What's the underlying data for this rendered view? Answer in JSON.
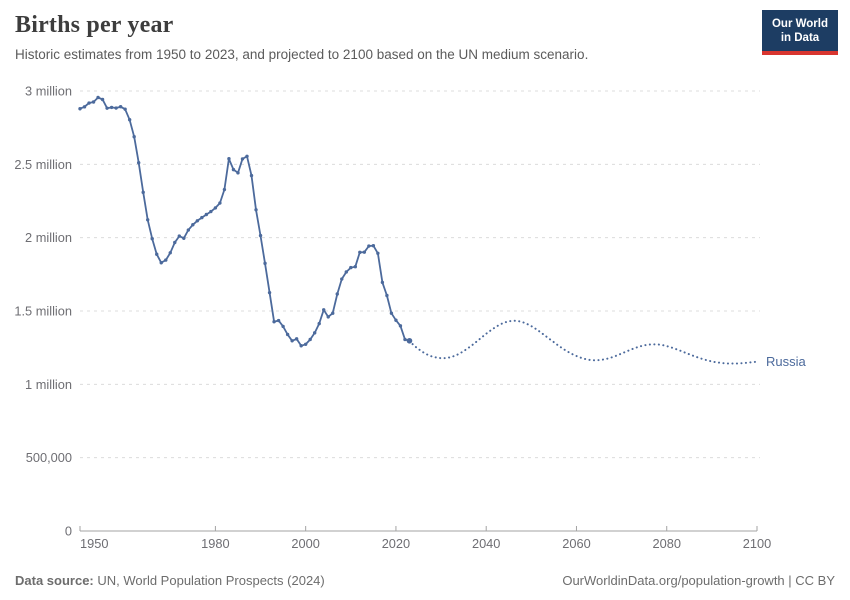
{
  "header": {
    "title": "Births per year",
    "subtitle": "Historic estimates from 1950 to 2023, and projected to 2100 based on the UN medium scenario."
  },
  "logo": {
    "line1": "Our World",
    "line2": "in Data"
  },
  "footer": {
    "datasource_label": "Data source:",
    "datasource_value": " UN, World Population Prospects (2024)",
    "right": "OurWorldinData.org/population-growth | CC BY"
  },
  "colors": {
    "line_blue": "#4c6a9c",
    "grid_gray": "#dcdcdc",
    "axis_gray": "#a3a3a3",
    "tick_label_gray": "#6e6e73",
    "logo_navy": "#1d3d63",
    "logo_red": "#d8352f"
  },
  "chart_data": {
    "type": "line",
    "title": "Births per year",
    "entity_label": "Russia",
    "values_unit": "millions of births per year",
    "xlim": [
      1950,
      2100
    ],
    "ylim_millions": [
      0,
      3
    ],
    "grid": "dashed horizontal",
    "x_ticks": [
      1950,
      1980,
      2000,
      2020,
      2040,
      2060,
      2080,
      2100
    ],
    "y_ticks": [
      {
        "value": 3,
        "label": "3 million"
      },
      {
        "value": 2.5,
        "label": "2.5 million"
      },
      {
        "value": 2,
        "label": "2 million"
      },
      {
        "value": 1.5,
        "label": "1.5 million"
      },
      {
        "value": 1,
        "label": "1 million"
      },
      {
        "value": 0.5,
        "label": "500,000"
      },
      {
        "value": 0,
        "label": "0"
      }
    ],
    "series": [
      {
        "name": "historic",
        "style": "solid_with_markers",
        "points": [
          [
            1950,
            2.879
          ],
          [
            1951,
            2.892
          ],
          [
            1952,
            2.918
          ],
          [
            1953,
            2.925
          ],
          [
            1954,
            2.956
          ],
          [
            1955,
            2.942
          ],
          [
            1956,
            2.883
          ],
          [
            1957,
            2.888
          ],
          [
            1958,
            2.884
          ],
          [
            1959,
            2.893
          ],
          [
            1960,
            2.876
          ],
          [
            1961,
            2.804
          ],
          [
            1962,
            2.688
          ],
          [
            1963,
            2.511
          ],
          [
            1964,
            2.309
          ],
          [
            1965,
            2.122
          ],
          [
            1966,
            1.993
          ],
          [
            1967,
            1.887
          ],
          [
            1968,
            1.829
          ],
          [
            1969,
            1.847
          ],
          [
            1970,
            1.897
          ],
          [
            1971,
            1.967
          ],
          [
            1972,
            2.011
          ],
          [
            1973,
            1.996
          ],
          [
            1974,
            2.052
          ],
          [
            1975,
            2.088
          ],
          [
            1976,
            2.115
          ],
          [
            1977,
            2.137
          ],
          [
            1978,
            2.158
          ],
          [
            1979,
            2.178
          ],
          [
            1980,
            2.203
          ],
          [
            1981,
            2.236
          ],
          [
            1982,
            2.328
          ],
          [
            1983,
            2.538
          ],
          [
            1984,
            2.464
          ],
          [
            1985,
            2.442
          ],
          [
            1986,
            2.537
          ],
          [
            1987,
            2.555
          ],
          [
            1988,
            2.423
          ],
          [
            1989,
            2.19
          ],
          [
            1990,
            2.014
          ],
          [
            1991,
            1.825
          ],
          [
            1992,
            1.625
          ],
          [
            1993,
            1.427
          ],
          [
            1994,
            1.435
          ],
          [
            1995,
            1.395
          ],
          [
            1996,
            1.34
          ],
          [
            1997,
            1.297
          ],
          [
            1998,
            1.31
          ],
          [
            1999,
            1.263
          ],
          [
            2000,
            1.273
          ],
          [
            2001,
            1.306
          ],
          [
            2002,
            1.351
          ],
          [
            2003,
            1.414
          ],
          [
            2004,
            1.508
          ],
          [
            2005,
            1.46
          ],
          [
            2006,
            1.485
          ],
          [
            2007,
            1.616
          ],
          [
            2008,
            1.718
          ],
          [
            2009,
            1.766
          ],
          [
            2010,
            1.796
          ],
          [
            2011,
            1.802
          ],
          [
            2012,
            1.9
          ],
          [
            2013,
            1.901
          ],
          [
            2014,
            1.943
          ],
          [
            2015,
            1.945
          ],
          [
            2016,
            1.893
          ],
          [
            2017,
            1.695
          ],
          [
            2018,
            1.606
          ],
          [
            2019,
            1.485
          ],
          [
            2020,
            1.437
          ],
          [
            2021,
            1.399
          ],
          [
            2022,
            1.306
          ],
          [
            2023,
            1.297
          ]
        ]
      },
      {
        "name": "projection",
        "style": "dotted",
        "points": [
          [
            2023,
            1.297
          ],
          [
            2024,
            1.264
          ],
          [
            2025,
            1.24
          ],
          [
            2026,
            1.219
          ],
          [
            2027,
            1.202
          ],
          [
            2028,
            1.19
          ],
          [
            2029,
            1.182
          ],
          [
            2030,
            1.178
          ],
          [
            2031,
            1.179
          ],
          [
            2032,
            1.184
          ],
          [
            2033,
            1.194
          ],
          [
            2034,
            1.208
          ],
          [
            2035,
            1.226
          ],
          [
            2036,
            1.247
          ],
          [
            2037,
            1.27
          ],
          [
            2038,
            1.295
          ],
          [
            2039,
            1.32
          ],
          [
            2040,
            1.345
          ],
          [
            2041,
            1.368
          ],
          [
            2042,
            1.389
          ],
          [
            2043,
            1.407
          ],
          [
            2044,
            1.421
          ],
          [
            2045,
            1.43
          ],
          [
            2046,
            1.434
          ],
          [
            2047,
            1.432
          ],
          [
            2048,
            1.425
          ],
          [
            2049,
            1.413
          ],
          [
            2050,
            1.397
          ],
          [
            2051,
            1.378
          ],
          [
            2052,
            1.356
          ],
          [
            2053,
            1.333
          ],
          [
            2054,
            1.31
          ],
          [
            2055,
            1.287
          ],
          [
            2056,
            1.264
          ],
          [
            2057,
            1.243
          ],
          [
            2058,
            1.224
          ],
          [
            2059,
            1.207
          ],
          [
            2060,
            1.193
          ],
          [
            2061,
            1.181
          ],
          [
            2062,
            1.172
          ],
          [
            2063,
            1.166
          ],
          [
            2064,
            1.164
          ],
          [
            2065,
            1.165
          ],
          [
            2066,
            1.169
          ],
          [
            2067,
            1.176
          ],
          [
            2068,
            1.186
          ],
          [
            2069,
            1.197
          ],
          [
            2070,
            1.21
          ],
          [
            2071,
            1.223
          ],
          [
            2072,
            1.236
          ],
          [
            2073,
            1.248
          ],
          [
            2074,
            1.258
          ],
          [
            2075,
            1.266
          ],
          [
            2076,
            1.271
          ],
          [
            2077,
            1.273
          ],
          [
            2078,
            1.272
          ],
          [
            2079,
            1.268
          ],
          [
            2080,
            1.261
          ],
          [
            2081,
            1.252
          ],
          [
            2082,
            1.241
          ],
          [
            2083,
            1.229
          ],
          [
            2084,
            1.217
          ],
          [
            2085,
            1.205
          ],
          [
            2086,
            1.193
          ],
          [
            2087,
            1.182
          ],
          [
            2088,
            1.172
          ],
          [
            2089,
            1.163
          ],
          [
            2090,
            1.156
          ],
          [
            2091,
            1.15
          ],
          [
            2092,
            1.146
          ],
          [
            2093,
            1.143
          ],
          [
            2094,
            1.142
          ],
          [
            2095,
            1.142
          ],
          [
            2096,
            1.143
          ],
          [
            2097,
            1.145
          ],
          [
            2098,
            1.148
          ],
          [
            2099,
            1.151
          ],
          [
            2100,
            1.154
          ]
        ]
      }
    ]
  }
}
